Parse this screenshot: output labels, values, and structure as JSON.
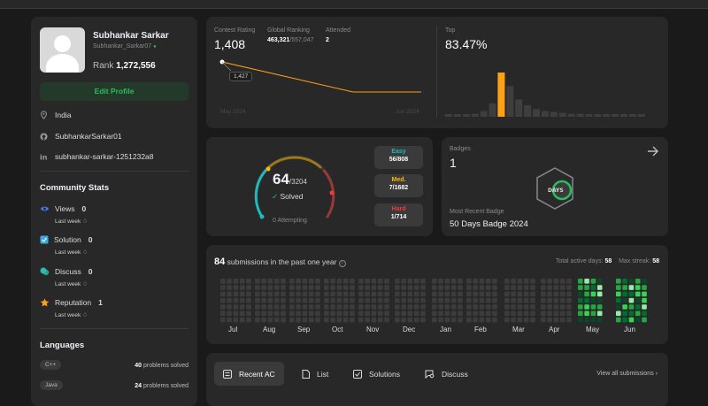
{
  "profile": {
    "name": "Subhankar Sarkar",
    "username": "Subhankar_Sarkar07",
    "rank_label": "Rank",
    "rank_value": "1,272,556",
    "edit_button": "Edit Profile",
    "location": "India",
    "github": "SubhankarSarkar01",
    "linkedin": "subhankar-sarkar-1251232a8"
  },
  "community": {
    "title": "Community Stats",
    "stats": [
      {
        "label": "Views",
        "value": "0",
        "sub": "Last week",
        "sub_value": "0",
        "icon": "eye-icon",
        "color": "#3b82f6"
      },
      {
        "label": "Solution",
        "value": "0",
        "sub": "Last week",
        "sub_value": "0",
        "icon": "checkbox-icon",
        "color": "#3ba8e6"
      },
      {
        "label": "Discuss",
        "value": "0",
        "sub": "Last week",
        "sub_value": "0",
        "icon": "chat-icon",
        "color": "#2cbbb0"
      },
      {
        "label": "Reputation",
        "value": "1",
        "sub": "Last week",
        "sub_value": "0",
        "icon": "star-icon",
        "color": "#ffa116"
      }
    ]
  },
  "languages": {
    "title": "Languages",
    "items": [
      {
        "name": "C++",
        "count": "40",
        "suffix": "problems solved"
      },
      {
        "name": "Java",
        "count": "24",
        "suffix": "problems solved"
      }
    ]
  },
  "contest": {
    "rating_label": "Contest Rating",
    "rating_value": "1,408",
    "global_label": "Global Ranking",
    "global_value": "463,321",
    "global_total": "/557,047",
    "attended_label": "Attended",
    "attended_value": "2",
    "tooltip": "1,427",
    "x_start": "May 2024",
    "x_end": "Jun 2024",
    "top_label": "Top",
    "top_value": "83.47%",
    "line_color": "#ffa116",
    "rating_points": [
      1427,
      1408
    ],
    "histogram": [
      1,
      1,
      2,
      3,
      6,
      14,
      46,
      32,
      18,
      12,
      8,
      6,
      5,
      4,
      3,
      3,
      2,
      2,
      1,
      1,
      1,
      1,
      1
    ],
    "histogram_highlight_index": 6
  },
  "solved": {
    "count": "64",
    "total": "/3204",
    "label": "Solved",
    "attempting": "0 Attempting",
    "easy_label": "Easy",
    "easy_value": "56/808",
    "easy_color": "#1cbaba",
    "med_label": "Med.",
    "med_value": "7/1682",
    "med_color": "#ffb700",
    "hard_label": "Hard",
    "hard_value": "1/714",
    "hard_color": "#f63737"
  },
  "badges": {
    "title": "Badges",
    "count": "1",
    "recent_label": "Most Recent Badge",
    "recent_name": "50 Days Badge 2024",
    "badge_text": "DAYS"
  },
  "submissions": {
    "count": "84",
    "text": "submissions in the past one year",
    "active_label": "Total active days:",
    "active_value": "58",
    "streak_label": "Max streak:",
    "streak_value": "58",
    "months": [
      "Jul",
      "Aug",
      "Sep",
      "Oct",
      "Nov",
      "Dec",
      "Jan",
      "Feb",
      "Mar",
      "Apr",
      "May",
      "Jun"
    ]
  },
  "recent": {
    "tabs": [
      {
        "label": "Recent AC",
        "icon": "list-check-icon"
      },
      {
        "label": "List",
        "icon": "document-icon"
      },
      {
        "label": "Solutions",
        "icon": "checkbox-icon"
      },
      {
        "label": "Discuss",
        "icon": "chat-search-icon"
      }
    ],
    "view_all": "View all submissions"
  }
}
